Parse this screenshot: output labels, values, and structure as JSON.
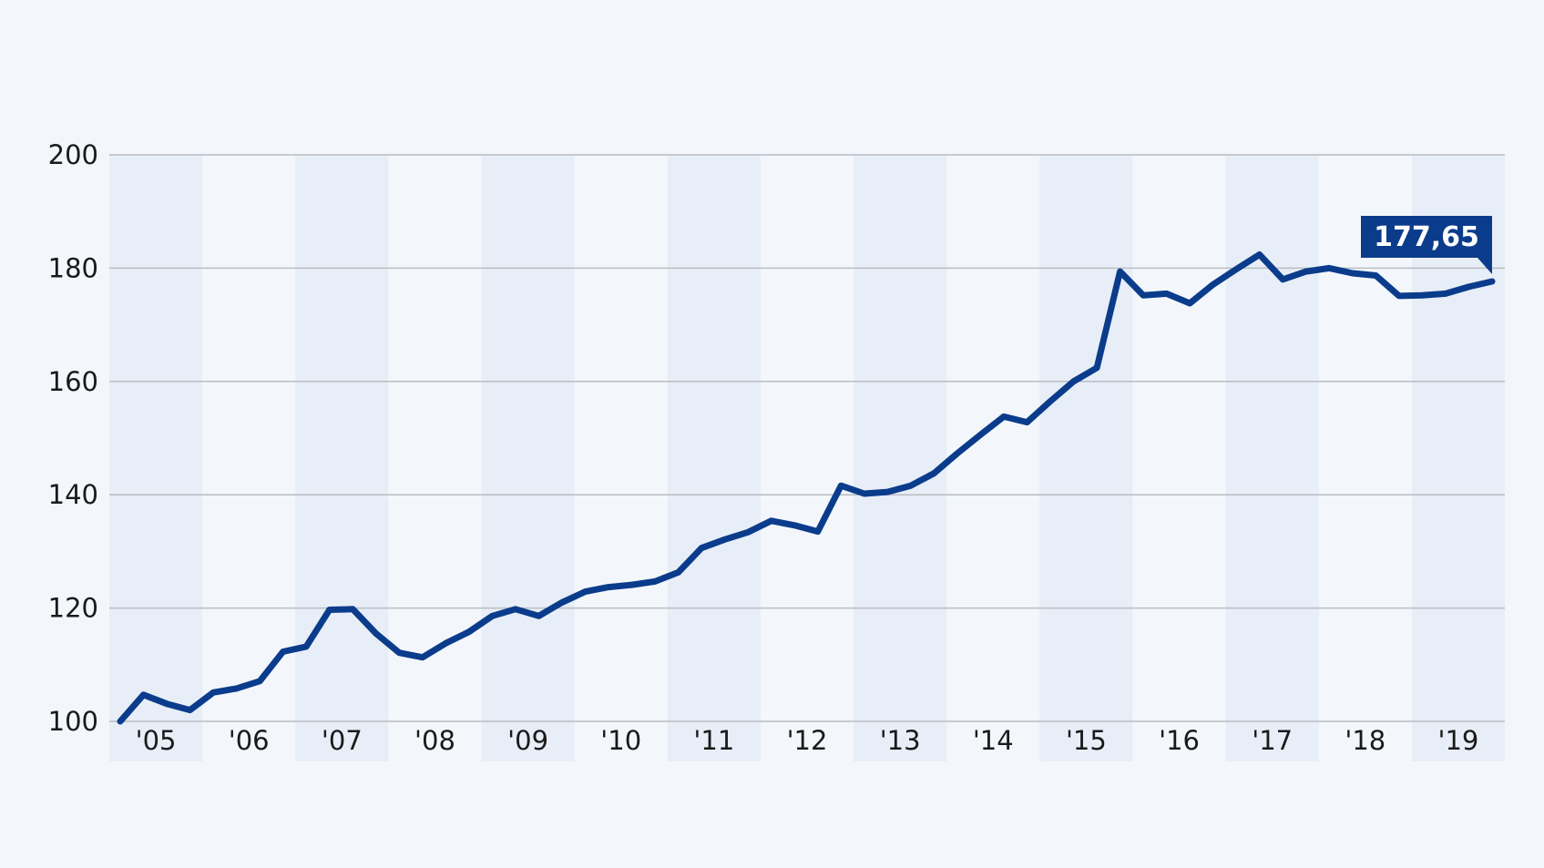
{
  "chart_data": {
    "type": "line",
    "title": "",
    "xlabel": "",
    "ylabel": "",
    "ylim": [
      100,
      200
    ],
    "y_ticks": [
      100,
      120,
      140,
      160,
      180,
      200
    ],
    "y_tick_labels": [
      "100",
      "120",
      "140",
      "160",
      "180",
      "200"
    ],
    "x_tick_labels": [
      "'05",
      "'06",
      "'07",
      "'08",
      "'09",
      "'10",
      "'11",
      "'12",
      "'13",
      "'14",
      "'15",
      "'16",
      "'17",
      "'18",
      "'19"
    ],
    "grid": true,
    "alternating_year_bands": true,
    "line_color": "#0b3c8c",
    "band_color": "#e8eef7",
    "grid_color": "#b9bcc2",
    "series": [
      {
        "values": [
          100.0,
          104.7,
          103.1,
          102.0,
          105.1,
          105.8,
          107.1,
          112.3,
          113.2,
          119.7,
          119.8,
          115.5,
          112.1,
          111.3,
          113.8,
          115.8,
          118.6,
          119.8,
          118.6,
          121.0,
          122.9,
          123.7,
          124.1,
          124.7,
          126.3,
          130.6,
          132.1,
          133.4,
          135.4,
          134.6,
          133.5,
          141.6,
          140.2,
          140.5,
          141.6,
          143.8,
          147.3,
          150.6,
          153.8,
          152.8,
          156.5,
          160.0,
          162.4,
          179.4,
          175.2,
          175.5,
          173.8,
          177.1,
          179.8,
          182.4,
          178.0,
          179.4,
          180.0,
          179.1,
          178.7,
          175.1,
          175.2,
          175.5,
          176.7,
          177.65
        ]
      }
    ],
    "annotations": [
      {
        "label": "177,65",
        "value": 177.65
      }
    ]
  }
}
